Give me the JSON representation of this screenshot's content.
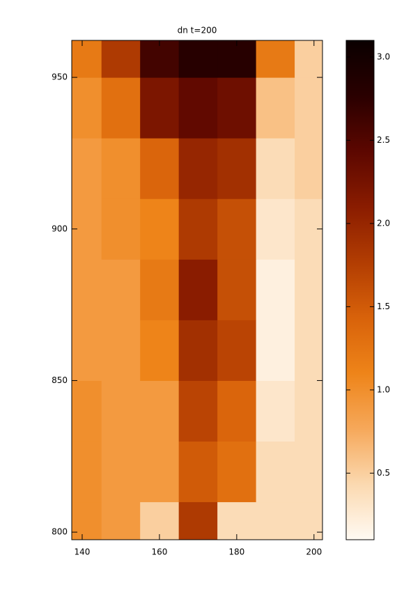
{
  "chart_data": {
    "type": "heatmap",
    "title": "dn   t=200",
    "x": [
      140,
      150,
      160,
      170,
      180,
      190,
      200
    ],
    "y": [
      800,
      820,
      840,
      860,
      880,
      900,
      920,
      940,
      960
    ],
    "z": [
      [
        1.0,
        0.9,
        0.5,
        1.8,
        0.4,
        0.4,
        0.4
      ],
      [
        1.0,
        0.9,
        0.9,
        1.5,
        1.3,
        0.4,
        0.4
      ],
      [
        1.0,
        0.9,
        0.9,
        1.7,
        1.4,
        0.3,
        0.4
      ],
      [
        0.9,
        0.9,
        1.1,
        1.9,
        1.7,
        0.2,
        0.4
      ],
      [
        0.9,
        0.9,
        1.2,
        2.1,
        1.6,
        0.2,
        0.4
      ],
      [
        0.9,
        1.0,
        1.1,
        1.8,
        1.6,
        0.3,
        0.4
      ],
      [
        0.9,
        1.0,
        1.4,
        2.0,
        1.9,
        0.4,
        0.5
      ],
      [
        1.0,
        1.3,
        2.2,
        2.4,
        2.3,
        0.6,
        0.5
      ],
      [
        1.2,
        1.8,
        2.6,
        2.8,
        2.8,
        1.2,
        0.5
      ]
    ],
    "xlim": [
      137.3,
      202.2
    ],
    "xticks": [
      140,
      160,
      180,
      200
    ],
    "ylim": [
      797.5,
      962.2
    ],
    "yticks": [
      800,
      850,
      900,
      950
    ],
    "clim": [
      0.1,
      3.1
    ],
    "cticks": [
      {
        "value": 0.5,
        "label": "0.5"
      },
      {
        "value": 1,
        "label": "1.0"
      },
      {
        "value": 1.5,
        "label": "1.5"
      },
      {
        "value": 2,
        "label": "2.0"
      },
      {
        "value": 2.5,
        "label": "2.5"
      },
      {
        "value": 3,
        "label": "3.0"
      }
    ],
    "colormap": [
      "#fffaf3",
      "#fbd9b0",
      "#f6a85a",
      "#ee8419",
      "#d8620a",
      "#b23d02",
      "#8a1c00",
      "#5c0700",
      "#2a0000",
      "#0a0000"
    ]
  }
}
